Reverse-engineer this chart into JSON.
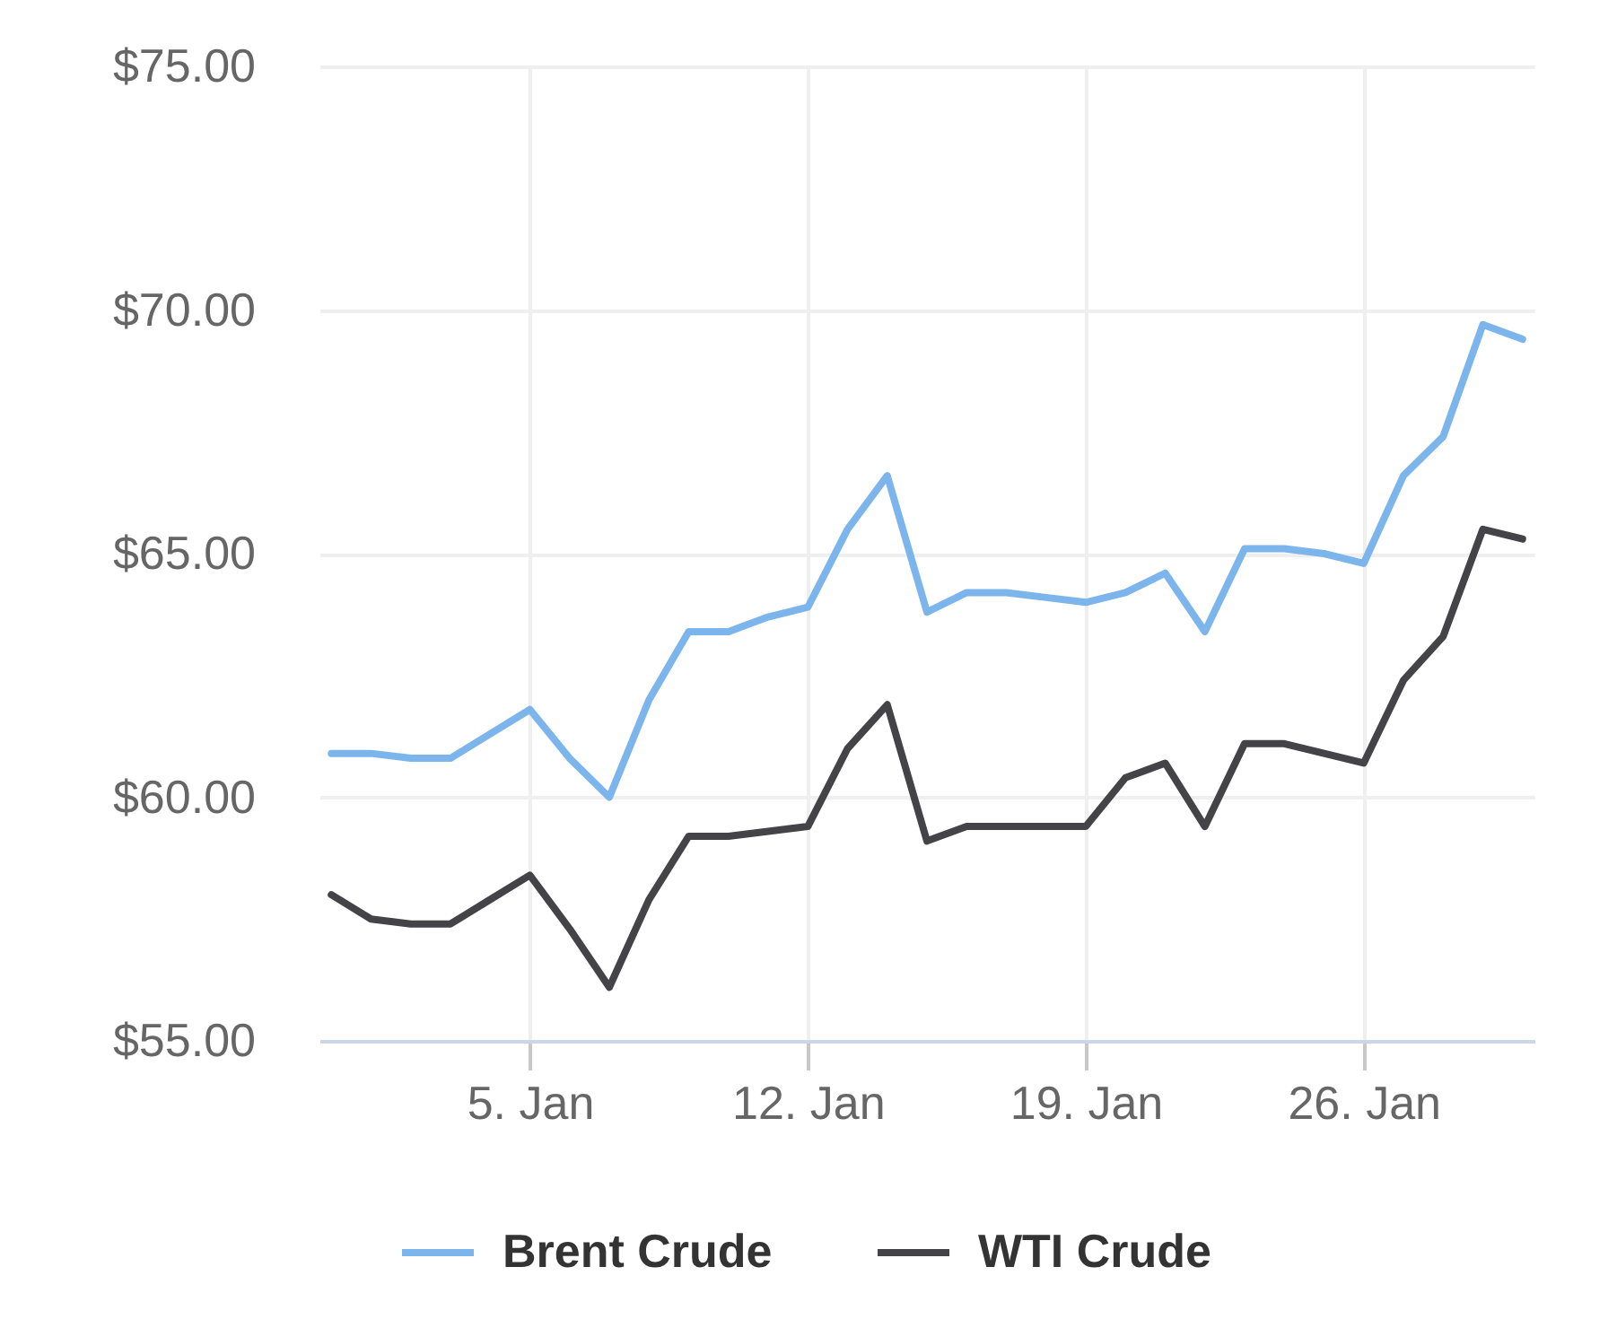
{
  "chart_data": {
    "type": "line",
    "categories": [
      null,
      null,
      null,
      null,
      null,
      "5. Jan",
      null,
      null,
      null,
      null,
      null,
      null,
      "12. Jan",
      null,
      null,
      null,
      null,
      null,
      null,
      "19. Jan",
      null,
      null,
      null,
      null,
      null,
      null,
      "26. Jan",
      null,
      null,
      null,
      null
    ],
    "series": [
      {
        "name": "Brent Crude",
        "color": "#7cb5ec",
        "values": [
          60.9,
          60.9,
          60.8,
          60.8,
          61.3,
          61.8,
          60.8,
          60.0,
          62.0,
          63.4,
          63.4,
          63.7,
          63.9,
          65.5,
          66.6,
          63.8,
          64.2,
          64.2,
          64.1,
          64.0,
          64.2,
          64.6,
          63.4,
          65.1,
          65.1,
          65.0,
          64.8,
          66.6,
          67.4,
          69.7,
          69.4
        ]
      },
      {
        "name": "WTI Crude",
        "color": "#434348",
        "values": [
          58.0,
          57.5,
          57.4,
          57.4,
          57.9,
          58.4,
          57.3,
          56.1,
          57.9,
          59.2,
          59.2,
          59.3,
          59.4,
          61.0,
          61.9,
          59.1,
          59.4,
          59.4,
          59.4,
          59.4,
          60.4,
          60.7,
          59.4,
          61.1,
          61.1,
          60.9,
          60.7,
          62.4,
          63.3,
          65.5,
          65.3
        ]
      }
    ],
    "ylim": [
      55,
      75
    ],
    "yticks": [
      {
        "value": 55,
        "label": "$55.00"
      },
      {
        "value": 60,
        "label": "$60.00"
      },
      {
        "value": 65,
        "label": "$65.00"
      },
      {
        "value": 70,
        "label": "$70.00"
      },
      {
        "value": 75,
        "label": "$75.00"
      }
    ],
    "grid": true,
    "legend": "bottom"
  }
}
